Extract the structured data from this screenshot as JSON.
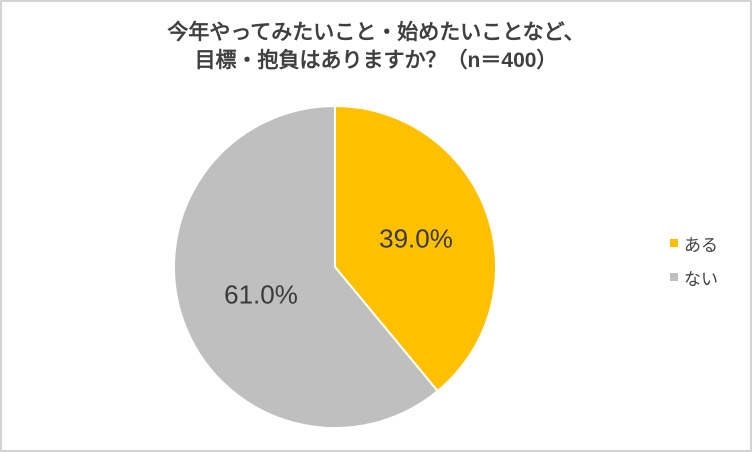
{
  "title": {
    "line1": "今年やってみたいこと・始めたいことなど、",
    "line2": "目標・抱負はありますか？（n＝400）"
  },
  "chart_data": {
    "type": "pie",
    "title": "今年やってみたいこと・始めたいことなど、目標・抱負はありますか？（n＝400）",
    "categories": [
      "ある",
      "ない"
    ],
    "values": [
      39.0,
      61.0
    ],
    "value_labels": [
      "39.0%",
      "61.0%"
    ],
    "colors": [
      "#FFC000",
      "#BFBFBF"
    ],
    "start_angle_deg": 0,
    "direction": "clockwise",
    "legend_position": "right",
    "slice_border_color": "#FFFFFF"
  },
  "legend": {
    "items": [
      {
        "label": "ある",
        "color": "#FFC000"
      },
      {
        "label": "ない",
        "color": "#BFBFBF"
      }
    ]
  },
  "styles": {
    "text_color": "#404040",
    "background": "#FFFFFF",
    "frame_border_color": "#D4D4D4"
  }
}
